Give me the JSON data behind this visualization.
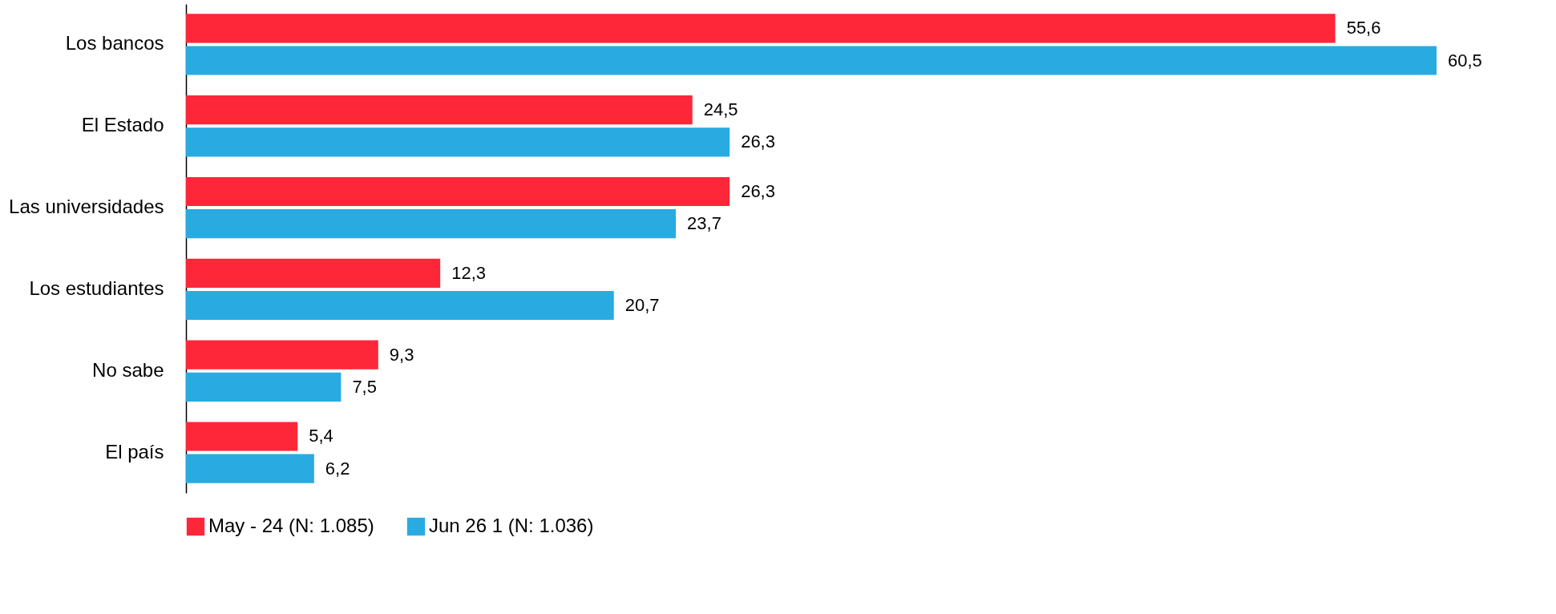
{
  "chart_data": {
    "type": "bar",
    "orientation": "horizontal",
    "categories": [
      "Los bancos",
      "El Estado",
      "Las universidades",
      "Los estudiantes",
      "No sabe",
      "El país"
    ],
    "series": [
      {
        "name": "May - 24 (N: 1.085)",
        "color": "#fe2639",
        "values": [
          55.6,
          24.5,
          26.3,
          12.3,
          9.3,
          5.4
        ],
        "value_labels": [
          "55,6",
          "24,5",
          "26,3",
          "12,3",
          "9,3",
          "5,4"
        ]
      },
      {
        "name": "Jun 26 1 (N: 1.036)",
        "color": "#29abe2",
        "values": [
          60.5,
          26.3,
          23.7,
          20.7,
          7.5,
          6.2
        ],
        "value_labels": [
          "60,5",
          "26,3",
          "23,7",
          "20,7",
          "7,5",
          "6,2"
        ]
      }
    ],
    "legend": "bottom",
    "grid": false
  }
}
